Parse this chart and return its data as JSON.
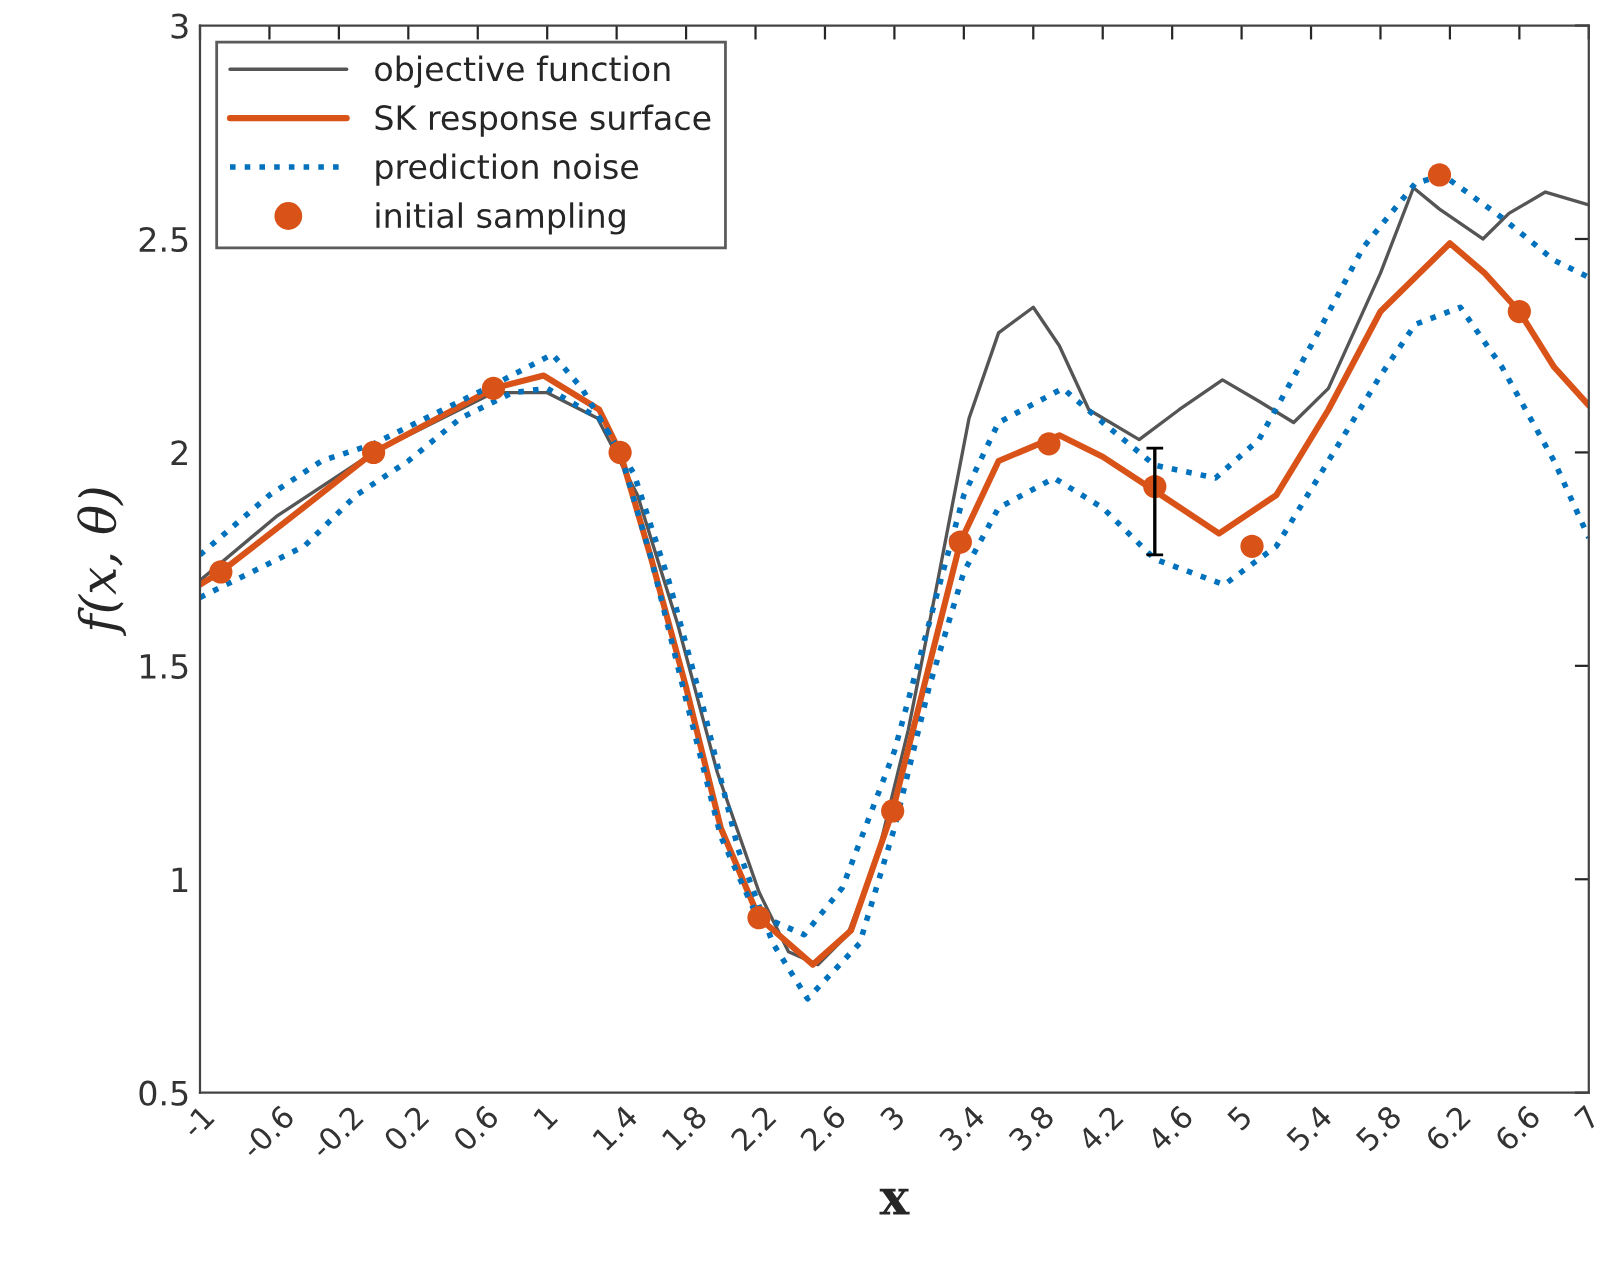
{
  "chart_data": {
    "type": "line",
    "xlabel": "x",
    "ylabel": "f(x, θ)",
    "xlim": [
      -1,
      7
    ],
    "ylim": [
      0.5,
      3
    ],
    "xticks": [
      -1,
      -0.6,
      -0.2,
      0.2,
      0.6,
      1,
      1.4,
      1.8,
      2.2,
      2.6,
      3,
      3.4,
      3.8,
      4.2,
      4.6,
      5,
      5.4,
      5.8,
      6.2,
      6.6,
      7
    ],
    "yticks": [
      0.5,
      1,
      1.5,
      2,
      2.5,
      3
    ],
    "grid": false,
    "legend": "top left",
    "series": [
      {
        "name": "objective function",
        "color": "#555555",
        "line_style": "solid",
        "marker": "none",
        "x": [
          -1,
          -0.56,
          0,
          0.69,
          1.0,
          1.29,
          1.52,
          1.75,
          1.98,
          2.22,
          2.39,
          2.56,
          2.73,
          2.9,
          3.08,
          3.25,
          3.43,
          3.6,
          3.8,
          3.95,
          4.12,
          4.41,
          4.64,
          4.89,
          5.1,
          5.3,
          5.5,
          5.8,
          5.99,
          6.14,
          6.39,
          6.54,
          6.75,
          7.0
        ],
        "values": [
          1.7,
          1.85,
          2.0,
          2.14,
          2.14,
          2.08,
          1.9,
          1.6,
          1.25,
          0.97,
          0.83,
          0.8,
          0.87,
          1.05,
          1.35,
          1.7,
          2.08,
          2.28,
          2.34,
          2.25,
          2.1,
          2.03,
          2.1,
          2.17,
          2.12,
          2.07,
          2.15,
          2.42,
          2.62,
          2.57,
          2.5,
          2.56,
          2.61,
          2.58
        ]
      },
      {
        "name": "SK response surface",
        "color": "#d95319",
        "line_style": "solid",
        "marker": "none",
        "x": [
          -1,
          -0.88,
          -0.5,
          0,
          0.69,
          0.98,
          1.3,
          1.42,
          1.6,
          1.8,
          2.0,
          2.22,
          2.53,
          2.75,
          2.99,
          3.2,
          3.38,
          3.6,
          3.95,
          4.2,
          4.5,
          4.87,
          5.2,
          5.5,
          5.8,
          6.2,
          6.4,
          6.6,
          6.8,
          7.0
        ],
        "values": [
          1.69,
          1.72,
          1.84,
          2.0,
          2.15,
          2.18,
          2.1,
          2.0,
          1.75,
          1.45,
          1.12,
          0.91,
          0.8,
          0.88,
          1.16,
          1.5,
          1.79,
          1.98,
          2.04,
          1.99,
          1.91,
          1.81,
          1.9,
          2.1,
          2.33,
          2.49,
          2.42,
          2.33,
          2.2,
          2.11
        ]
      },
      {
        "name": "prediction noise",
        "color": "#0072bd",
        "line_style": "dotted",
        "marker": "none",
        "x": [
          -1,
          -0.6,
          -0.3,
          0,
          0.4,
          0.7,
          1.03,
          1.2,
          1.42,
          1.6,
          1.8,
          2.0,
          2.2,
          2.48,
          2.7,
          3.0,
          3.2,
          3.4,
          3.6,
          3.97,
          4.2,
          4.5,
          4.85,
          5.1,
          5.4,
          5.7,
          6.0,
          6.16,
          6.5,
          6.8,
          7.0
        ],
        "values": [
          1.76,
          1.9,
          1.98,
          2.02,
          2.1,
          2.16,
          2.23,
          2.15,
          2.0,
          1.75,
          1.42,
          1.1,
          0.92,
          0.87,
          0.98,
          1.3,
          1.6,
          1.9,
          2.07,
          2.15,
          2.07,
          1.97,
          1.94,
          2.03,
          2.25,
          2.48,
          2.63,
          2.65,
          2.55,
          2.45,
          2.41
        ]
      },
      {
        "color": "#0072bd",
        "line_style": "dotted",
        "marker": "none",
        "x": [
          -1,
          -0.7,
          -0.4,
          -0.1,
          0.2,
          0.5,
          0.8,
          1.0,
          1.3,
          1.5,
          1.7,
          1.9,
          2.1,
          2.3,
          2.5,
          2.8,
          3.0,
          3.2,
          3.4,
          3.6,
          3.92,
          4.2,
          4.5,
          4.9,
          5.2,
          5.5,
          5.8,
          6.0,
          6.26,
          6.5,
          6.8,
          7.0
        ],
        "values": [
          1.66,
          1.72,
          1.78,
          1.9,
          1.98,
          2.08,
          2.14,
          2.15,
          2.08,
          1.95,
          1.7,
          1.4,
          1.07,
          0.85,
          0.72,
          0.85,
          1.12,
          1.45,
          1.72,
          1.87,
          1.94,
          1.87,
          1.75,
          1.69,
          1.78,
          1.98,
          2.18,
          2.3,
          2.34,
          2.2,
          1.98,
          1.8
        ]
      },
      {
        "name": "initial sampling",
        "type": "scatter",
        "color": "#d95319",
        "marker": "circle",
        "x": [
          -0.88,
          0.0,
          0.69,
          1.42,
          2.22,
          2.99,
          3.38,
          3.89,
          4.5,
          5.06,
          6.14,
          6.6
        ],
        "values": [
          1.72,
          2.0,
          2.15,
          2.0,
          0.91,
          1.16,
          1.79,
          2.02,
          1.92,
          1.78,
          2.65,
          2.33
        ],
        "errors": [
          null,
          null,
          null,
          null,
          null,
          null,
          null,
          null,
          [
            1.76,
            2.01
          ],
          null,
          null,
          null
        ]
      }
    ]
  }
}
